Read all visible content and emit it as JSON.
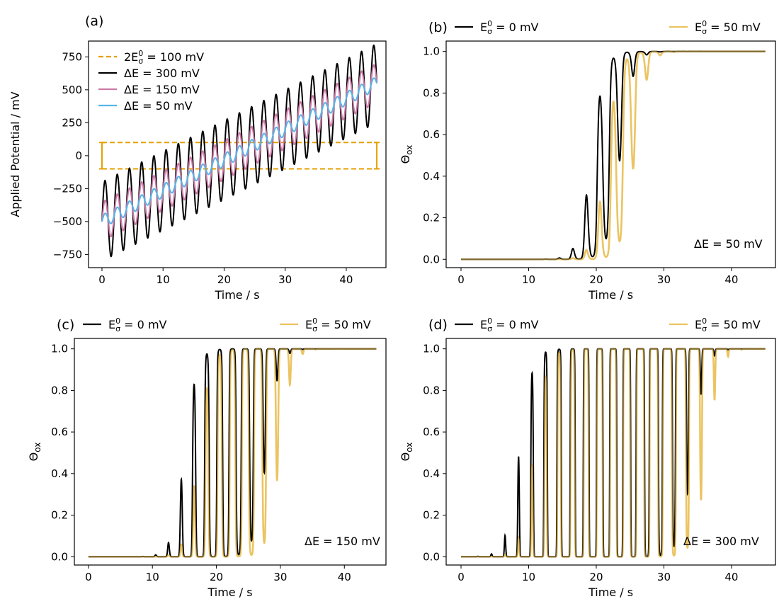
{
  "colors": {
    "black": "#000000",
    "orange": "#E69F00",
    "orange_light": "#EBC35F",
    "pink": "#CC79A7",
    "blue": "#56B4E9",
    "overlap": "#8A6B20"
  },
  "chart_data": [
    {
      "id": "a",
      "type": "line",
      "panel_label": "(a)",
      "xlabel": "Time / s",
      "ylabel": "Applied Potential / mV",
      "xlim": [
        -2.2,
        46.5
      ],
      "ylim": [
        -850,
        870
      ],
      "xticks": [
        0,
        10,
        20,
        30,
        40
      ],
      "yticks": [
        -750,
        -500,
        -250,
        0,
        250,
        500,
        750
      ],
      "grid": false,
      "legend_position": "top-left",
      "signal": {
        "offset_start": -500,
        "slope_per_s": 23.33,
        "period_s": 2,
        "t_max": 45
      },
      "series": [
        {
          "name_main": "2E",
          "name_sup": "0",
          "name_sub": "σ",
          "name_tail": " = 100 mV",
          "style": "dashed",
          "color": "#E69F00",
          "band": [
            -100,
            100
          ]
        },
        {
          "name_main": "ΔE = 300 mV",
          "amplitude": 300,
          "color": "#000000"
        },
        {
          "name_main": "ΔE = 150 mV",
          "amplitude": 150,
          "color": "#CC79A7"
        },
        {
          "name_main": "ΔE = 50 mV",
          "amplitude": 50,
          "color": "#56B4E9"
        }
      ]
    },
    {
      "id": "b",
      "type": "line",
      "panel_label": "(b)",
      "annotation": "ΔE = 50 mV",
      "xlabel": "Time / s",
      "ylabel_main": "Θ",
      "ylabel_sub": "ox",
      "xlim": [
        -2.2,
        46.5
      ],
      "ylim": [
        -0.04,
        1.05
      ],
      "xticks": [
        0,
        10,
        20,
        30,
        40
      ],
      "yticks": [
        0.0,
        0.2,
        0.4,
        0.6,
        0.8,
        1.0
      ],
      "amplitude": 50,
      "legend": [
        {
          "main": "E",
          "sup": "0",
          "sub": "σ",
          "tail": " = 0 mV",
          "color": "#000000"
        },
        {
          "main": "E",
          "sup": "0",
          "sub": "σ",
          "tail": " = 50 mV",
          "color": "#EBC35F"
        }
      ],
      "series": [
        {
          "e0": 0,
          "color": "#000000"
        },
        {
          "e0": 50,
          "color": "#EBC35F"
        }
      ]
    },
    {
      "id": "c",
      "type": "line",
      "panel_label": "(c)",
      "annotation": "ΔE = 150 mV",
      "xlabel": "Time / s",
      "ylabel_main": "Θ",
      "ylabel_sub": "ox",
      "xlim": [
        -2.2,
        46.5
      ],
      "ylim": [
        -0.04,
        1.05
      ],
      "xticks": [
        0,
        10,
        20,
        30,
        40
      ],
      "yticks": [
        0.0,
        0.2,
        0.4,
        0.6,
        0.8,
        1.0
      ],
      "amplitude": 150,
      "legend": [
        {
          "main": "E",
          "sup": "0",
          "sub": "σ",
          "tail": " = 0 mV",
          "color": "#000000"
        },
        {
          "main": "E",
          "sup": "0",
          "sub": "σ",
          "tail": " = 50 mV",
          "color": "#EBC35F"
        }
      ],
      "series": [
        {
          "e0": 0,
          "color": "#000000"
        },
        {
          "e0": 50,
          "color": "#EBC35F"
        }
      ]
    },
    {
      "id": "d",
      "type": "line",
      "panel_label": "(d)",
      "annotation": "ΔE = 300 mV",
      "xlabel": "Time / s",
      "ylabel_main": "Θ",
      "ylabel_sub": "ox",
      "xlim": [
        -2.2,
        46.5
      ],
      "ylim": [
        -0.04,
        1.05
      ],
      "xticks": [
        0,
        10,
        20,
        30,
        40
      ],
      "yticks": [
        0.0,
        0.2,
        0.4,
        0.6,
        0.8,
        1.0
      ],
      "amplitude": 300,
      "legend": [
        {
          "main": "E",
          "sup": "0",
          "sub": "σ",
          "tail": " = 0 mV",
          "color": "#000000"
        },
        {
          "main": "E",
          "sup": "0",
          "sub": "σ",
          "tail": " = 50 mV",
          "color": "#EBC35F"
        }
      ],
      "series": [
        {
          "e0": 0,
          "color": "#000000"
        },
        {
          "e0": 50,
          "color": "#EBC35F"
        }
      ]
    }
  ]
}
